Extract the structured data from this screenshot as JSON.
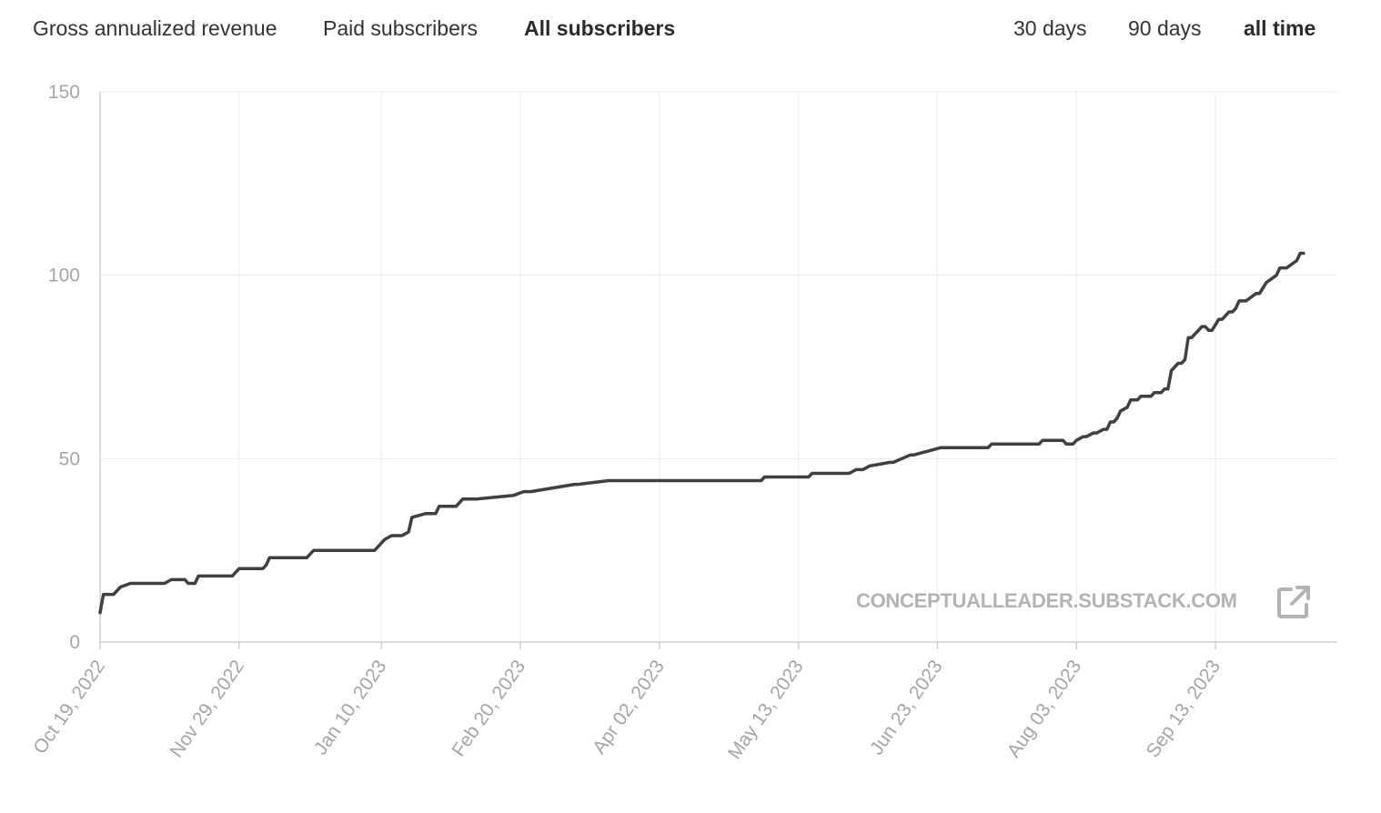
{
  "metric_tabs": {
    "gross": "Gross annualized revenue",
    "paid": "Paid subscribers",
    "all": "All subscribers"
  },
  "active_metric": "all",
  "range_tabs": {
    "d30": "30 days",
    "d90": "90 days",
    "all": "all time"
  },
  "active_range": "all",
  "watermark": "CONCEPTUALLEADER.SUBSTACK.COM",
  "icons": {
    "external": "external-link-icon"
  },
  "colors": {
    "line": "#404040",
    "grid": "#ebebeb",
    "axis_text": "#a6a6a6"
  },
  "chart_data": {
    "type": "line",
    "title": "",
    "xlabel": "",
    "ylabel": "",
    "ylim": [
      0,
      150
    ],
    "y_ticks": [
      "0",
      "50",
      "100",
      "150"
    ],
    "x_ticks": [
      "Oct 19, 2022",
      "Nov 29, 2022",
      "Jan 10, 2023",
      "Feb 20, 2023",
      "Apr 02, 2023",
      "May 13, 2023",
      "Jun 23, 2023",
      "Aug 03, 2023",
      "Sep 13, 2023"
    ],
    "grid": true,
    "legend": "none",
    "series": [
      {
        "x": [
          "2022-10-19",
          "2022-10-20",
          "2022-10-23",
          "2022-10-25",
          "2022-10-28",
          "2022-11-07",
          "2022-11-09",
          "2022-11-13",
          "2022-11-14",
          "2022-11-16",
          "2022-11-17",
          "2022-11-27",
          "2022-11-29",
          "2022-12-06",
          "2022-12-07",
          "2022-12-08",
          "2022-12-10",
          "2022-12-19",
          "2022-12-21",
          "2023-01-08",
          "2023-01-10",
          "2023-01-11",
          "2023-01-13",
          "2023-01-16",
          "2023-01-18",
          "2023-01-19",
          "2023-01-23",
          "2023-01-26",
          "2023-01-27",
          "2023-02-01",
          "2023-02-03",
          "2023-02-07",
          "2023-02-18",
          "2023-02-21",
          "2023-02-23",
          "2023-03-08",
          "2023-03-09",
          "2023-03-18",
          "2023-03-20",
          "2023-05-02",
          "2023-05-03",
          "2023-05-16",
          "2023-05-17",
          "2023-05-28",
          "2023-05-30",
          "2023-06-01",
          "2023-06-03",
          "2023-06-09",
          "2023-06-10",
          "2023-06-15",
          "2023-06-16",
          "2023-06-24",
          "2023-06-25",
          "2023-07-08",
          "2023-07-09",
          "2023-07-23",
          "2023-07-24",
          "2023-07-30",
          "2023-07-31",
          "2023-08-02",
          "2023-08-03",
          "2023-08-05",
          "2023-08-06",
          "2023-08-08",
          "2023-08-09",
          "2023-08-11",
          "2023-08-12",
          "2023-08-13",
          "2023-08-14",
          "2023-08-15",
          "2023-08-16",
          "2023-08-18",
          "2023-08-19",
          "2023-08-21",
          "2023-08-22",
          "2023-08-25",
          "2023-08-26",
          "2023-08-28",
          "2023-08-29",
          "2023-08-30",
          "2023-08-31",
          "2023-09-02",
          "2023-09-03",
          "2023-09-04",
          "2023-09-05",
          "2023-09-06",
          "2023-09-07",
          "2023-09-08",
          "2023-09-09",
          "2023-09-10",
          "2023-09-11",
          "2023-09-12",
          "2023-09-14",
          "2023-09-15",
          "2023-09-17",
          "2023-09-18",
          "2023-09-19",
          "2023-09-20",
          "2023-09-21",
          "2023-09-22",
          "2023-09-25",
          "2023-09-26",
          "2023-09-28",
          "2023-10-01",
          "2023-10-02",
          "2023-10-03",
          "2023-10-04",
          "2023-10-07",
          "2023-10-08",
          "2023-10-09"
        ],
        "y": [
          8,
          13,
          13,
          15,
          16,
          16,
          17,
          17,
          16,
          16,
          18,
          18,
          20,
          20,
          21,
          23,
          23,
          23,
          25,
          25,
          27,
          28,
          29,
          29,
          30,
          34,
          35,
          35,
          37,
          37,
          39,
          39,
          40,
          41,
          41,
          43,
          43,
          44,
          44,
          44,
          45,
          45,
          46,
          46,
          47,
          47,
          48,
          49,
          49,
          51,
          51,
          53,
          53,
          53,
          54,
          54,
          55,
          55,
          54,
          54,
          55,
          56,
          56,
          57,
          57,
          58,
          58,
          60,
          60,
          61,
          63,
          64,
          66,
          66,
          67,
          67,
          68,
          68,
          69,
          69,
          74,
          76,
          76,
          77,
          83,
          83,
          84,
          85,
          86,
          86,
          85,
          85,
          88,
          88,
          90,
          90,
          91,
          93,
          93,
          93,
          95,
          95,
          98,
          100,
          102,
          102,
          102,
          104,
          106,
          106
        ]
      }
    ]
  }
}
